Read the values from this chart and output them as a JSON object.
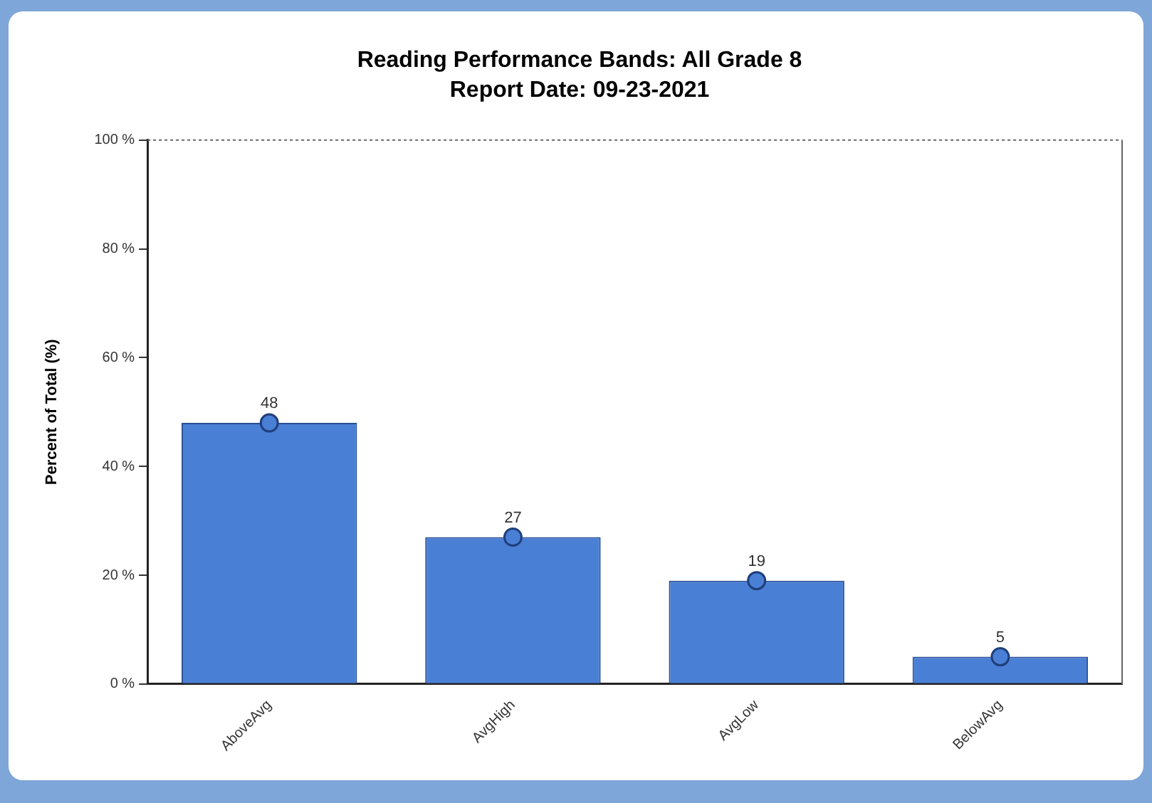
{
  "chart_data": {
    "type": "bar",
    "title": "Reading Performance Bands: All Grade 8",
    "subtitle": "Report Date: 09-23-2021",
    "ylabel": "Percent of Total (%)",
    "categories": [
      "AboveAvg",
      "AvgHigh",
      "AvgLow",
      "BelowAvg"
    ],
    "series": [
      {
        "color": "#4a7fd6",
        "values": [
          48,
          27,
          19,
          5
        ]
      },
      {
        "type": "scatter",
        "color": "#4a7fd6",
        "marker": "circle",
        "x": [
          "AboveAvg",
          "AvgHigh",
          "AvgLow",
          "BelowAvg"
        ],
        "values": [
          48,
          27,
          19,
          5
        ],
        "value_labels": [
          "48",
          "27",
          "19",
          "5"
        ]
      }
    ],
    "ylim": [
      0,
      100
    ],
    "yticks": [
      {
        "value": 0,
        "label": "0 %"
      },
      {
        "value": 20,
        "label": "20 %"
      },
      {
        "value": 40,
        "label": "40 %"
      },
      {
        "value": 60,
        "label": "60 %"
      },
      {
        "value": 80,
        "label": "80 %"
      },
      {
        "value": 100,
        "label": "100 %"
      }
    ],
    "grid": false,
    "legend": false
  }
}
